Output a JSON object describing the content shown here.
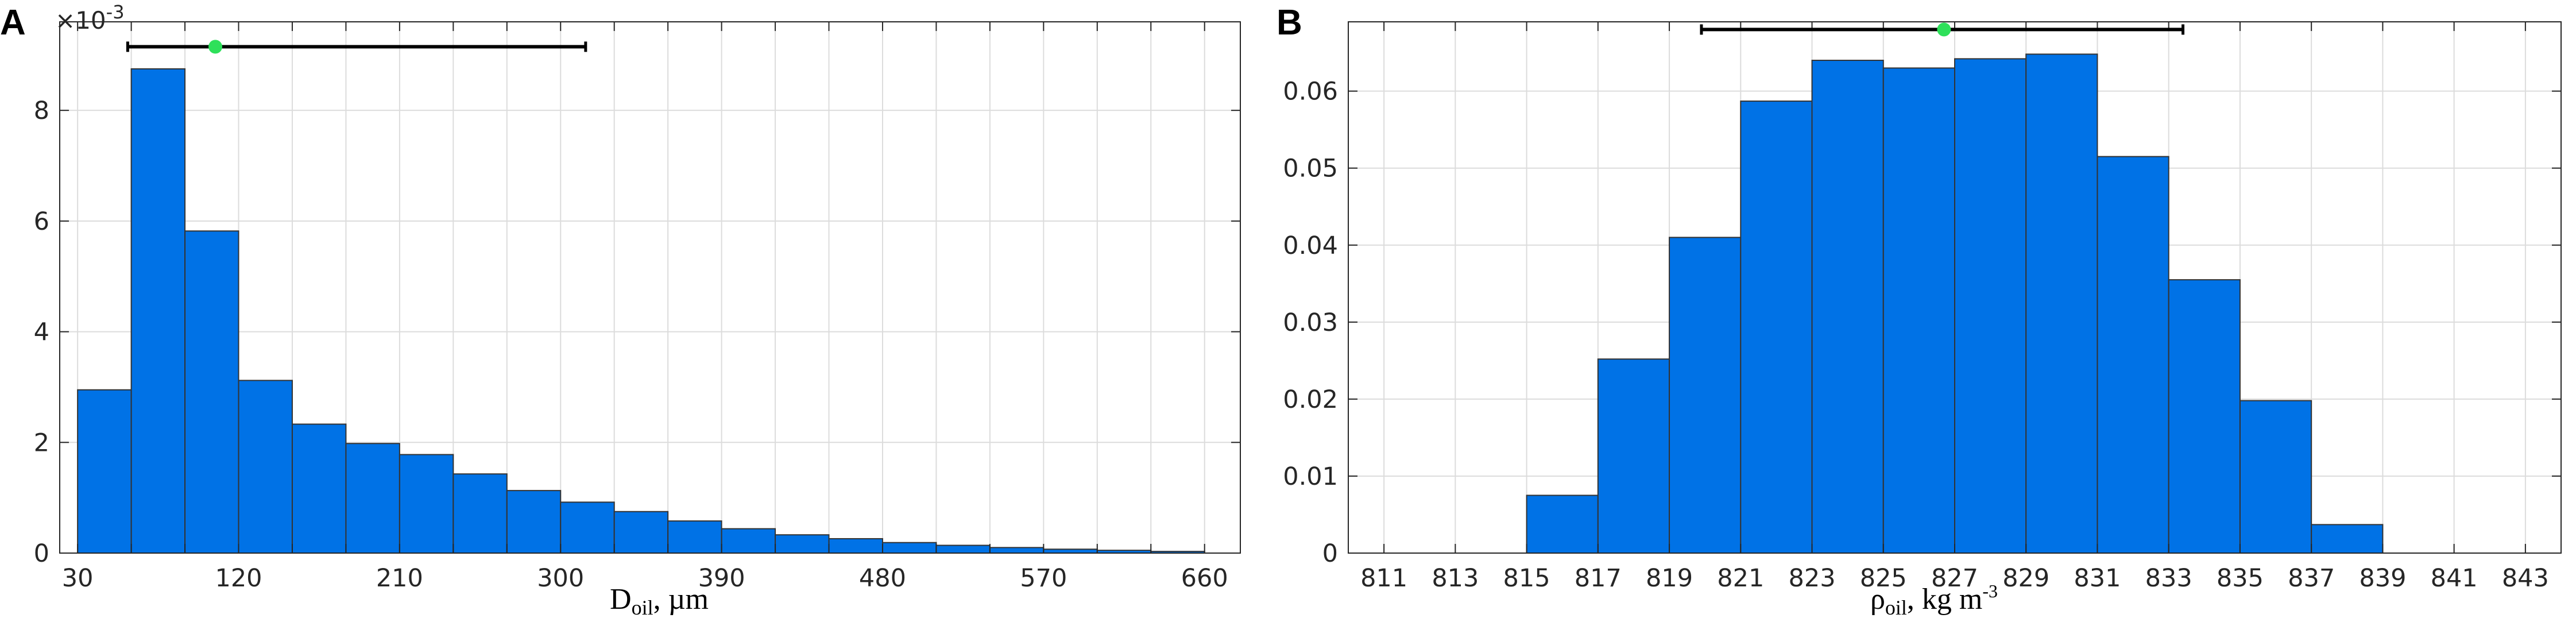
{
  "panels": [
    {
      "letter": "A",
      "chart_data": {
        "type": "bar",
        "bin_edges": [
          30,
          60,
          90,
          120,
          150,
          180,
          210,
          240,
          270,
          300,
          330,
          360,
          390,
          420,
          450,
          480,
          510,
          540,
          570,
          600,
          630,
          660
        ],
        "values": [
          2.95,
          8.75,
          5.82,
          3.12,
          2.33,
          1.98,
          1.78,
          1.43,
          1.13,
          0.92,
          0.75,
          0.58,
          0.44,
          0.33,
          0.26,
          0.19,
          0.14,
          0.1,
          0.07,
          0.05,
          0.03
        ],
        "xlim": [
          20,
          680
        ],
        "ylim": [
          0,
          9.6
        ],
        "x_tick_labels": [
          "30",
          "120",
          "210",
          "300",
          "390",
          "480",
          "570",
          "660"
        ],
        "y_tick_labels": [
          "0",
          "2",
          "4",
          "6",
          "8"
        ],
        "y_exponent": "×10",
        "y_exponent_power": "-3",
        "xlabel": "D",
        "xlabel_sub": "oil",
        "xlabel_unit": ", µm",
        "interval": {
          "low": 58,
          "mean": 107,
          "high": 314,
          "y": 9.15
        },
        "grid": true,
        "bar_color": "#0072e6",
        "mean_marker_color": "#2ee05a"
      }
    },
    {
      "letter": "B",
      "chart_data": {
        "type": "bar",
        "bin_edges": [
          815,
          817,
          819,
          821,
          823,
          825,
          827,
          829,
          831,
          833,
          835,
          837,
          839
        ],
        "values": [
          0.0075,
          0.0252,
          0.041,
          0.0587,
          0.064,
          0.063,
          0.0642,
          0.0648,
          0.0515,
          0.0355,
          0.0198,
          0.0037
        ],
        "xlim": [
          810,
          844
        ],
        "ylim": [
          0,
          0.069
        ],
        "x_tick_labels": [
          "811",
          "813",
          "815",
          "817",
          "819",
          "821",
          "823",
          "825",
          "827",
          "829",
          "831",
          "833",
          "835",
          "837",
          "839",
          "841",
          "843"
        ],
        "y_tick_labels": [
          "0",
          "0.01",
          "0.02",
          "0.03",
          "0.04",
          "0.05",
          "0.06"
        ],
        "xlabel": "ρ",
        "xlabel_sub": "oil",
        "xlabel_unit": ", kg m",
        "xlabel_sup": "-3",
        "interval": {
          "low": 819.9,
          "mean": 826.7,
          "high": 833.4,
          "y": 0.068
        },
        "grid": true,
        "bar_color": "#0072e6",
        "mean_marker_color": "#2ee05a"
      }
    }
  ]
}
